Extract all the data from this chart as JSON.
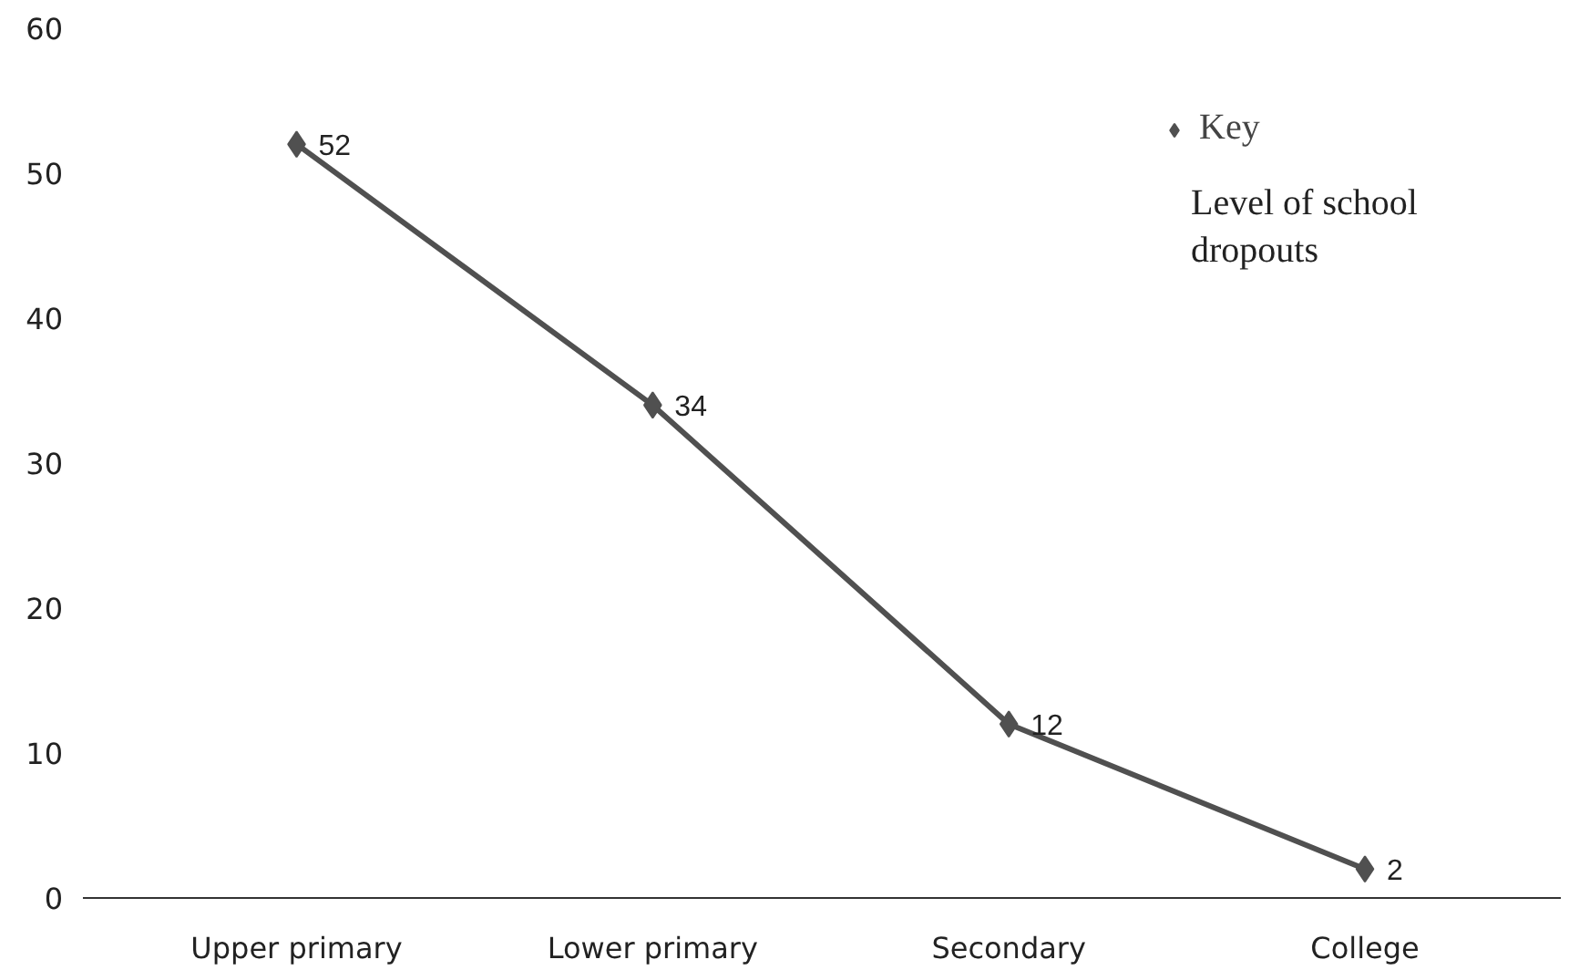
{
  "chart_data": {
    "type": "line",
    "categories": [
      "Upper primary",
      "Lower primary",
      "Secondary",
      "College"
    ],
    "series": [
      {
        "name": "Key",
        "color": "#505050",
        "values": [
          52,
          34,
          12,
          2
        ]
      }
    ],
    "ylim": [
      0,
      60
    ],
    "yticks": [
      0,
      10,
      20,
      30,
      40,
      50,
      60
    ],
    "annotations": [
      "Level of school dropouts"
    ],
    "data_labels": true,
    "marker": "diamond",
    "line_style": "solid",
    "grid": false,
    "legend": "top right"
  }
}
